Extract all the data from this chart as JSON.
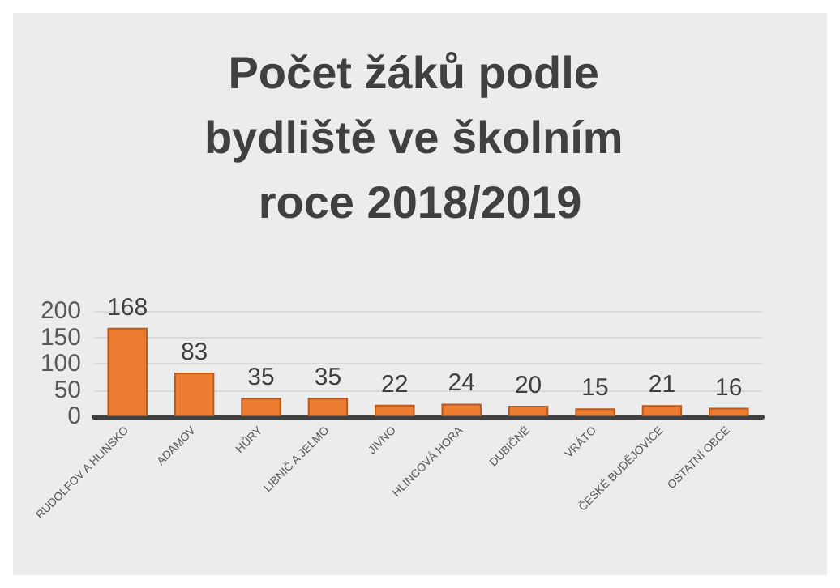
{
  "chart_data": {
    "type": "bar",
    "title": "Počet žáků podle bydliště ve školním roce 2018/2019",
    "categories": [
      "RUDOLFOV A HLINSKO",
      "ADAMOV",
      "HŮRY",
      "LIBNIČ A JELMO",
      "JIVNO",
      "HLINCOVÁ HORA",
      "DUBIČNÉ",
      "VRÁTO",
      "ČESKÉ BUDĚJOVICE",
      "OSTATNÍ OBCE"
    ],
    "values": [
      168,
      83,
      35,
      35,
      22,
      24,
      20,
      15,
      21,
      16
    ],
    "color": "#ed7d31",
    "ylim": [
      0,
      200
    ],
    "yticks": [
      0,
      50,
      100,
      150,
      200
    ],
    "grid": "y",
    "data_labels": true
  }
}
